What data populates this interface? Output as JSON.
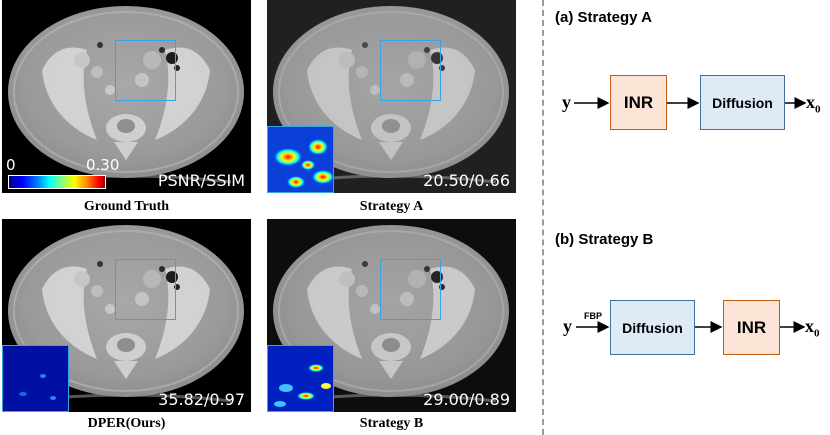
{
  "figure": {
    "panels": [
      {
        "id": "ground-truth",
        "caption": "Ground Truth",
        "metric": "PSNR/SSIM",
        "has_error_inset": false,
        "has_colorbar": true
      },
      {
        "id": "strategy-a",
        "caption": "Strategy A",
        "metric": "20.50/0.66",
        "has_error_inset": true,
        "error_level": "high"
      },
      {
        "id": "dper",
        "caption": "DPER(Ours)",
        "metric": "35.82/0.97",
        "has_error_inset": true,
        "error_level": "low"
      },
      {
        "id": "strategy-b",
        "caption": "Strategy B",
        "metric": "29.00/0.89",
        "has_error_inset": true,
        "error_level": "medium"
      }
    ],
    "colorbar": {
      "min_label": "0",
      "max_label": "0.30"
    },
    "colors": {
      "roi_box": "#3aa3e6",
      "inr_fill": "#fce4d6",
      "inr_border": "#c55a11",
      "diffusion_fill": "#deebf7",
      "diffusion_border": "#41719c",
      "divider": "#9b9b9b"
    }
  },
  "strategies": {
    "a": {
      "title": "(a) Strategy A",
      "input": "y",
      "block1": "INR",
      "block2": "Diffusion",
      "output": "x",
      "output_sub": "0"
    },
    "b": {
      "title": "(b) Strategy B",
      "input": "y",
      "edge_label": "FBP",
      "block1": "Diffusion",
      "block2": "INR",
      "output": "x",
      "output_sub": "0"
    }
  }
}
